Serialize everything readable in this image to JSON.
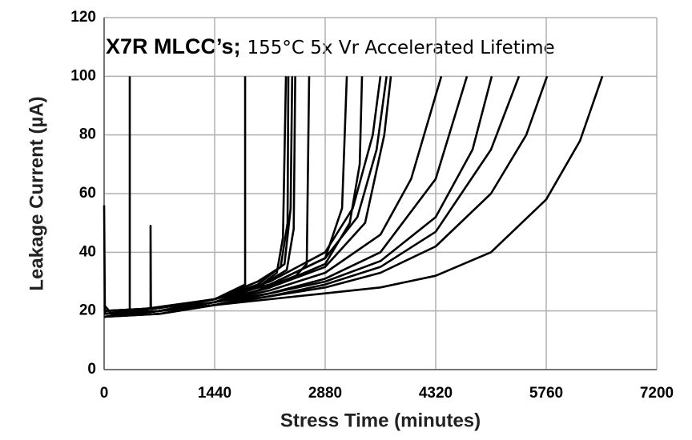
{
  "chart_data": {
    "type": "line",
    "title": "X7R MLCC’s;",
    "subtitle": "155°C 5x Vr Accelerated Lifetime",
    "xlabel": "Stress Time (minutes)",
    "ylabel": "Leakage Current (µA)",
    "xlim": [
      0,
      7200
    ],
    "xticks": [
      0,
      1440,
      2880,
      4320,
      5760,
      7200
    ],
    "ylim": [
      0,
      120
    ],
    "yticks": [
      0,
      20,
      40,
      60,
      80,
      100,
      120
    ],
    "grid": true,
    "color": "#000000",
    "series": [
      {
        "x": [
          0,
          100,
          334,
          334
        ],
        "values": [
          22,
          19,
          19,
          100
        ]
      },
      {
        "x": [
          0,
          605,
          605,
          610,
          1440
        ],
        "values": [
          19,
          21,
          49,
          21,
          24
        ]
      },
      {
        "x": [
          0,
          10,
          20,
          720,
          1440,
          1837,
          1837
        ],
        "values": [
          56,
          20,
          19,
          20,
          24,
          29,
          100
        ]
      },
      {
        "x": [
          0,
          720,
          1440,
          2000,
          2250,
          2330,
          2369
        ],
        "values": [
          18,
          20,
          23,
          28,
          33,
          45,
          100
        ]
      },
      {
        "x": [
          0,
          720,
          1440,
          2000,
          2300,
          2390,
          2400
        ],
        "values": [
          19,
          21,
          24,
          30,
          35,
          50,
          100
        ]
      },
      {
        "x": [
          0,
          720,
          1440,
          2000,
          2350,
          2430,
          2450
        ],
        "values": [
          20,
          21,
          24,
          29,
          36,
          55,
          100
        ]
      },
      {
        "x": [
          0,
          720,
          1440,
          2000,
          2380,
          2470,
          2490
        ],
        "values": [
          18,
          20,
          23,
          28,
          34,
          48,
          100
        ]
      },
      {
        "x": [
          0,
          720,
          1440,
          2000,
          2500,
          2640,
          2671
        ],
        "values": [
          18,
          20,
          23,
          27,
          32,
          36,
          100
        ]
      },
      {
        "x": [
          0,
          720,
          1440,
          2160,
          2880,
          3100,
          3162
        ],
        "values": [
          20,
          21,
          24,
          29,
          38,
          55,
          100
        ]
      },
      {
        "x": [
          0,
          720,
          1440,
          2160,
          2880,
          3200,
          3330,
          3360
        ],
        "values": [
          19,
          20,
          23,
          28,
          36,
          50,
          70,
          100
        ]
      },
      {
        "x": [
          0,
          720,
          1440,
          2160,
          2880,
          3240,
          3500,
          3600
        ],
        "values": [
          20,
          21,
          24,
          30,
          40,
          55,
          80,
          100
        ]
      },
      {
        "x": [
          0,
          720,
          1440,
          2160,
          2880,
          3300,
          3550,
          3680
        ],
        "values": [
          19,
          21,
          24,
          29,
          38,
          52,
          75,
          100
        ]
      },
      {
        "x": [
          0,
          720,
          1440,
          2160,
          2880,
          3400,
          3650,
          3736
        ],
        "values": [
          18,
          20,
          23,
          28,
          35,
          50,
          80,
          100
        ]
      },
      {
        "x": [
          0,
          720,
          1440,
          2160,
          2880,
          3600,
          4000,
          4393
        ],
        "values": [
          18,
          20,
          23,
          27,
          33,
          46,
          65,
          100
        ]
      },
      {
        "x": [
          0,
          720,
          1440,
          2160,
          2880,
          3600,
          4320,
          4727
        ],
        "values": [
          19,
          20,
          23,
          26,
          31,
          40,
          65,
          100
        ]
      },
      {
        "x": [
          0,
          720,
          1440,
          2160,
          2880,
          3600,
          4320,
          4800,
          5050
        ],
        "values": [
          18,
          20,
          22,
          26,
          30,
          37,
          52,
          75,
          100
        ]
      },
      {
        "x": [
          0,
          720,
          1440,
          2160,
          2880,
          3600,
          4320,
          5040,
          5405
        ],
        "values": [
          19,
          20,
          22,
          25,
          29,
          35,
          47,
          75,
          100
        ]
      },
      {
        "x": [
          0,
          720,
          1440,
          2160,
          2880,
          3600,
          4320,
          5040,
          5500,
          5771
        ],
        "values": [
          18,
          19,
          22,
          25,
          28,
          33,
          42,
          60,
          80,
          100
        ]
      },
      {
        "x": [
          0,
          720,
          1440,
          2160,
          2880,
          3600,
          4320,
          5040,
          5760,
          6200,
          6491
        ],
        "values": [
          18,
          19,
          22,
          24,
          26,
          28,
          32,
          40,
          58,
          78,
          100
        ]
      }
    ]
  }
}
